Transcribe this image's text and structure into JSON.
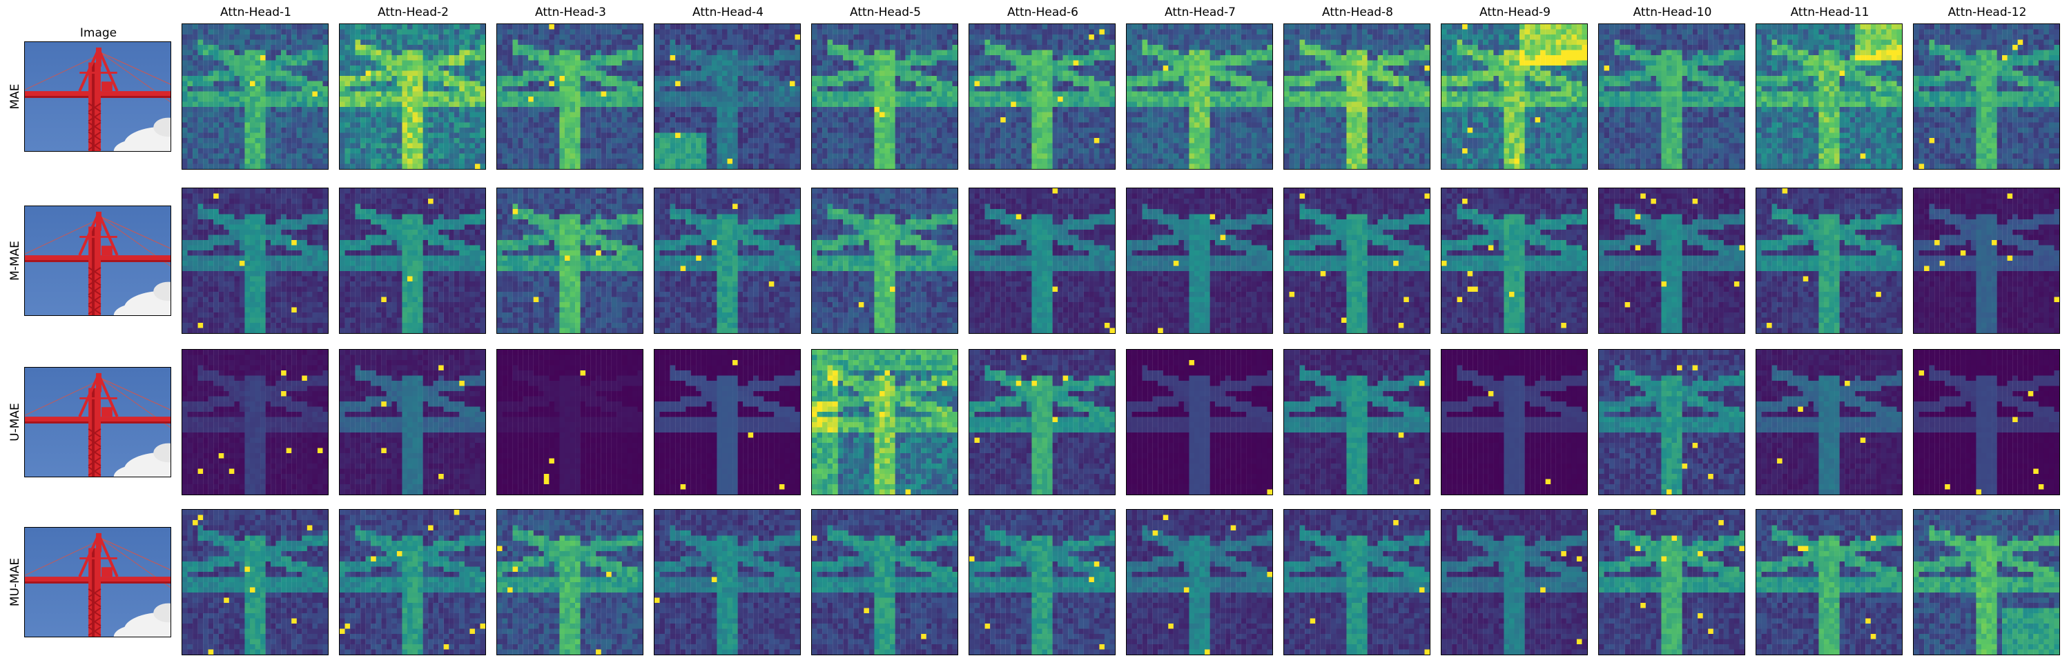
{
  "figure": {
    "image_column_title": "Image",
    "head_titles": [
      "Attn-Head-1",
      "Attn-Head-2",
      "Attn-Head-3",
      "Attn-Head-4",
      "Attn-Head-5",
      "Attn-Head-6",
      "Attn-Head-7",
      "Attn-Head-8",
      "Attn-Head-9",
      "Attn-Head-10",
      "Attn-Head-11",
      "Attn-Head-12"
    ],
    "row_labels": [
      "MAE",
      "M-MAE",
      "U-MAE",
      "MU-MAE"
    ],
    "colormap": [
      "#440154",
      "#3b528b",
      "#21918c",
      "#5ec962",
      "#fde725"
    ],
    "image_colors": {
      "sky": "#5b84c4",
      "sky_top": "#4a74b8",
      "crane": "#d8262c",
      "crane_dark": "#a8141c",
      "cloud": "#f2f2f2"
    }
  }
}
